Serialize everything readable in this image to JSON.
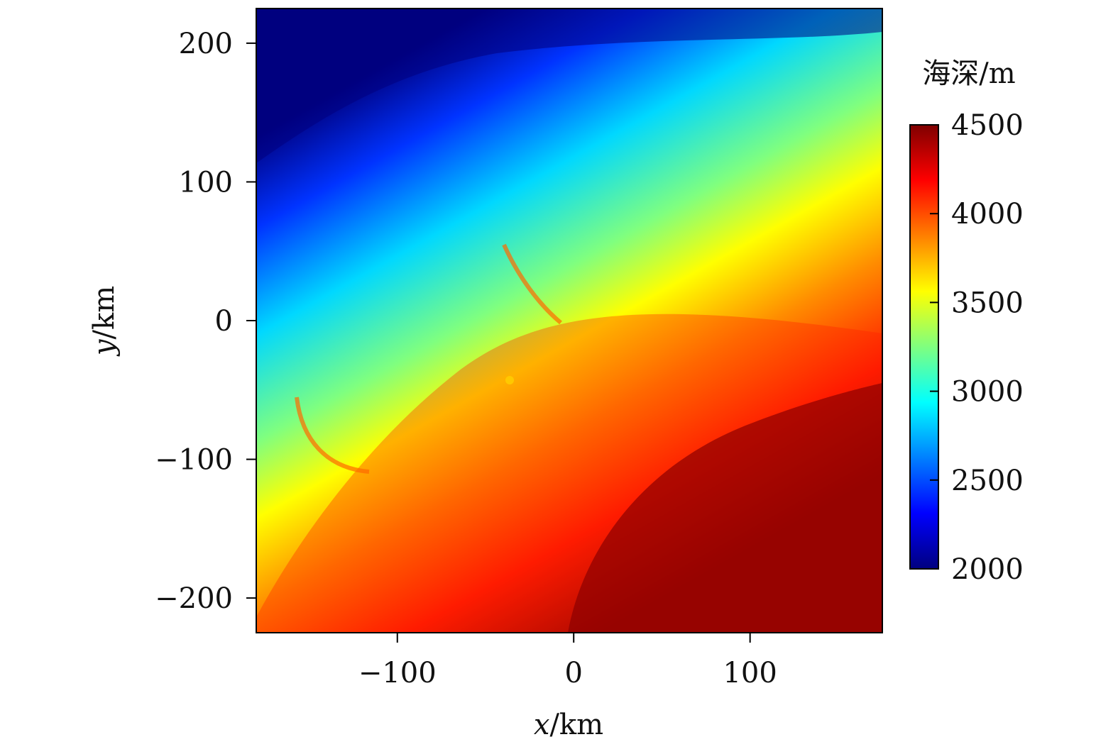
{
  "chart_data": {
    "type": "heatmap",
    "title": "",
    "xlabel": {
      "var": "x",
      "unit": "/km"
    },
    "ylabel": {
      "var": "y",
      "unit": "/km"
    },
    "xlim": [
      -180,
      175
    ],
    "ylim": [
      -225,
      225
    ],
    "xticks": [
      -100,
      0,
      100
    ],
    "xtick_labels": [
      "−100",
      "0",
      "100"
    ],
    "yticks": [
      200,
      100,
      0,
      -100,
      -200
    ],
    "ytick_labels": [
      "200",
      "100",
      "0",
      "−100",
      "−200"
    ],
    "colorbar": {
      "label": "海深/m",
      "range": [
        2000,
        4500
      ],
      "ticks": [
        4500,
        4000,
        3500,
        3000,
        2500,
        2000
      ],
      "tick_labels": [
        "4500",
        "4000",
        "3500",
        "3000",
        "2500",
        "2000"
      ],
      "colormap": "jet"
    },
    "approximate_depth_field": [
      {
        "region": "north-west corner (x≈-150, y≈200)",
        "depth_m": 2000
      },
      {
        "region": "north center (x≈0, y≈180)",
        "depth_m": 2500
      },
      {
        "region": "west (x≈-150, y≈50)",
        "depth_m": 3000
      },
      {
        "region": "center-north (x≈0, y≈80)",
        "depth_m": 3200
      },
      {
        "region": "center (x≈0, y≈0)",
        "depth_m": 3900
      },
      {
        "region": "east (x≈150, y≈50)",
        "depth_m": 4000
      },
      {
        "region": "south-west (x≈-160, y≈-200)",
        "depth_m": 3800
      },
      {
        "region": "south-east (x≈100, y≈-150)",
        "depth_m": 4500
      }
    ],
    "grid": false,
    "legend": "colorbar-right"
  }
}
